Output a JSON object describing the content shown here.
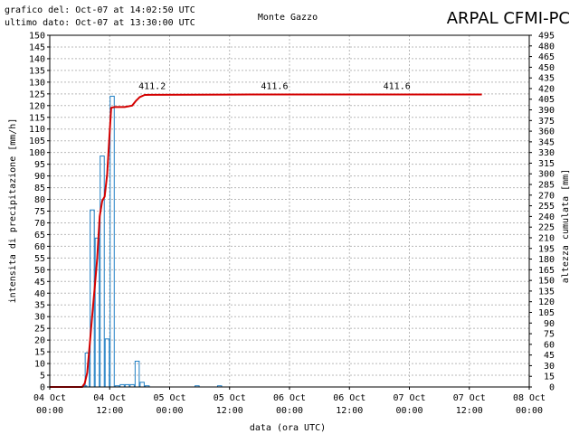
{
  "header": {
    "generated": "grafico del: Oct-07 at 14:02:50 UTC",
    "last_data": "ultimo dato: Oct-07 at 13:30:00 UTC",
    "station": "Monte Gazzo",
    "brand": "ARPAL CFMI-PC"
  },
  "chart_data": {
    "type": "bar",
    "title": "Monte Gazzo",
    "xlabel": "data (ora UTC)",
    "ylabel": "intensita di precipitazione [mm/h]",
    "y2label": "altezza cumulata [mm]",
    "ylim": [
      0,
      150
    ],
    "y2lim": [
      0,
      495
    ],
    "yticks": [
      0,
      5,
      10,
      15,
      20,
      25,
      30,
      35,
      40,
      45,
      50,
      55,
      60,
      65,
      70,
      75,
      80,
      85,
      90,
      95,
      100,
      105,
      110,
      115,
      120,
      125,
      130,
      135,
      140,
      145,
      150
    ],
    "y2ticks": [
      0,
      15,
      30,
      45,
      60,
      75,
      90,
      105,
      120,
      135,
      150,
      165,
      180,
      195,
      210,
      225,
      240,
      255,
      270,
      285,
      300,
      315,
      330,
      345,
      360,
      375,
      390,
      405,
      420,
      435,
      450,
      465,
      480,
      495
    ],
    "xlim_hours": [
      0,
      96
    ],
    "xticks": [
      {
        "h": 0,
        "line1": "04 Oct",
        "line2": "00:00"
      },
      {
        "h": 12,
        "line1": "04 Oct",
        "line2": "12:00"
      },
      {
        "h": 24,
        "line1": "05 Oct",
        "line2": "00:00"
      },
      {
        "h": 36,
        "line1": "05 Oct",
        "line2": "12:00"
      },
      {
        "h": 48,
        "line1": "06 Oct",
        "line2": "00:00"
      },
      {
        "h": 60,
        "line1": "06 Oct",
        "line2": "12:00"
      },
      {
        "h": 72,
        "line1": "07 Oct",
        "line2": "00:00"
      },
      {
        "h": 84,
        "line1": "07 Oct",
        "line2": "12:00"
      },
      {
        "h": 96,
        "line1": "08 Oct",
        "line2": "00:00"
      }
    ],
    "grid": true,
    "bar_color": "#1f7fc4",
    "line_color": "#d40000",
    "intensity_bars": [
      {
        "start": 6.5,
        "value": 0.5
      },
      {
        "start": 7.0,
        "value": 14.5
      },
      {
        "start": 8.0,
        "value": 75.5
      },
      {
        "start": 9.0,
        "value": 63.5
      },
      {
        "start": 10.0,
        "value": 98.5
      },
      {
        "start": 11.0,
        "value": 20.5
      },
      {
        "start": 12.0,
        "value": 124.0
      },
      {
        "start": 13.0,
        "value": 0.5
      },
      {
        "start": 14.0,
        "value": 1.0
      },
      {
        "start": 15.0,
        "value": 1.0
      },
      {
        "start": 16.0,
        "value": 1.0
      },
      {
        "start": 17.0,
        "value": 11.0
      },
      {
        "start": 18.0,
        "value": 2.0
      },
      {
        "start": 19.0,
        "value": 0.5
      },
      {
        "start": 29.0,
        "value": 0.5
      },
      {
        "start": 33.5,
        "value": 0.5
      }
    ],
    "cumulative": {
      "name": "altezza cumulata",
      "points": [
        [
          0,
          0
        ],
        [
          6.5,
          0
        ],
        [
          7.0,
          5
        ],
        [
          7.5,
          20
        ],
        [
          8.0,
          60
        ],
        [
          8.5,
          100
        ],
        [
          9.0,
          140
        ],
        [
          9.5,
          180
        ],
        [
          10.0,
          240
        ],
        [
          10.5,
          262
        ],
        [
          11.0,
          268
        ],
        [
          11.5,
          300
        ],
        [
          12.0,
          360
        ],
        [
          12.3,
          393
        ],
        [
          13.0,
          394
        ],
        [
          15.0,
          394
        ],
        [
          16.5,
          396
        ],
        [
          17.3,
          403
        ],
        [
          18.0,
          408
        ],
        [
          19.0,
          411.0
        ],
        [
          20.0,
          411.2
        ],
        [
          40.0,
          411.6
        ],
        [
          86.5,
          411.6
        ]
      ]
    },
    "annotations": [
      {
        "h": 20.5,
        "text": "411.2"
      },
      {
        "h": 45.0,
        "text": "411.6"
      },
      {
        "h": 69.5,
        "text": "411.6"
      }
    ]
  }
}
